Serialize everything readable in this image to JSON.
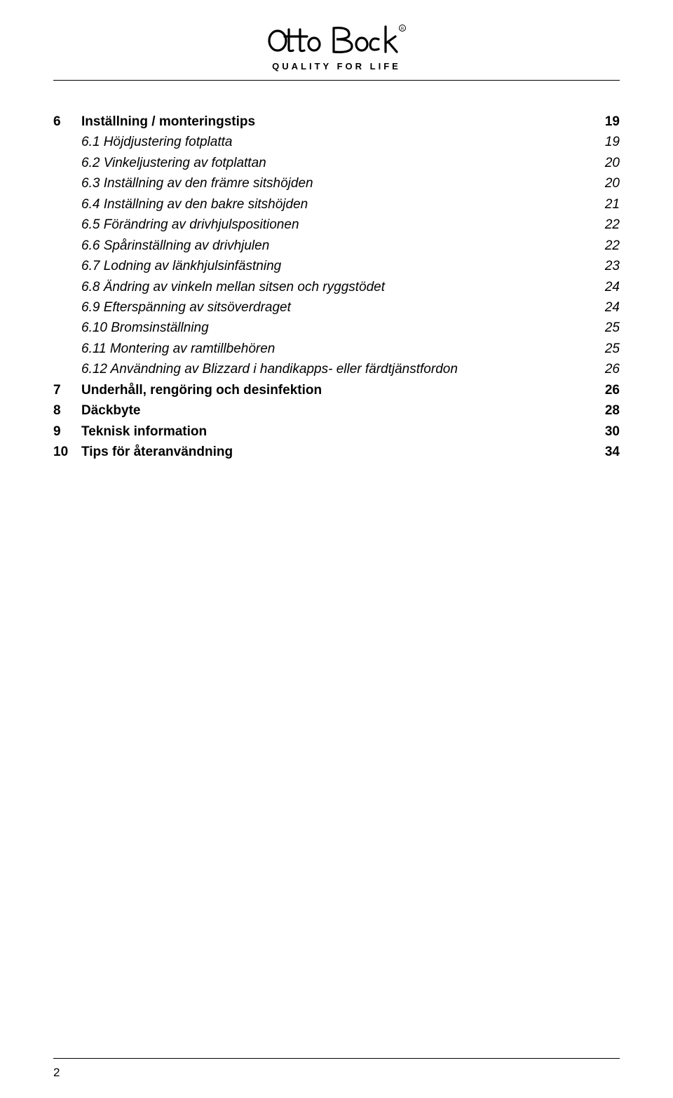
{
  "logo": {
    "tagline": "QUALITY FOR LIFE"
  },
  "page_number": "2",
  "toc": [
    {
      "style": "bold",
      "num": "6",
      "title": "Inställning / monteringstips",
      "page": "19"
    },
    {
      "style": "italic",
      "num": "",
      "title": "6.1 Höjdjustering fotplatta",
      "page": "19"
    },
    {
      "style": "italic",
      "num": "",
      "title": "6.2 Vinkeljustering av fotplattan",
      "page": "20"
    },
    {
      "style": "italic",
      "num": "",
      "title": "6.3 Inställning av den främre sitshöjden",
      "page": "20"
    },
    {
      "style": "italic",
      "num": "",
      "title": "6.4 Inställning av den bakre sitshöjden",
      "page": "21"
    },
    {
      "style": "italic",
      "num": "",
      "title": "6.5 Förändring av drivhjulspositionen",
      "page": "22"
    },
    {
      "style": "italic",
      "num": "",
      "title": "6.6 Spårinställning av drivhjulen",
      "page": "22"
    },
    {
      "style": "italic",
      "num": "",
      "title": "6.7 Lodning av länkhjulsinfästning",
      "page": "23"
    },
    {
      "style": "italic",
      "num": "",
      "title": "6.8 Ändring av vinkeln mellan sitsen och ryggstödet",
      "page": "24"
    },
    {
      "style": "italic",
      "num": "",
      "title": "6.9 Efterspänning av sitsöverdraget",
      "page": "24"
    },
    {
      "style": "italic",
      "num": "",
      "title": "6.10 Bromsinställning",
      "page": "25"
    },
    {
      "style": "italic",
      "num": "",
      "title": "6.11 Montering av ramtillbehören",
      "page": "25"
    },
    {
      "style": "italic",
      "num": "",
      "title": "6.12 Användning av Blizzard i handikapps- eller färdtjänstfordon",
      "page": "26"
    },
    {
      "style": "bold",
      "num": "7",
      "title": "Underhåll, rengöring och desinfektion ",
      "page": "26"
    },
    {
      "style": "bold",
      "num": "8",
      "title": "Däckbyte",
      "page": "28"
    },
    {
      "style": "bold",
      "num": "9",
      "title": "Teknisk information",
      "page": "30"
    },
    {
      "style": "bold",
      "num": "10",
      "title": "Tips för återanvändning",
      "page": "34"
    }
  ]
}
